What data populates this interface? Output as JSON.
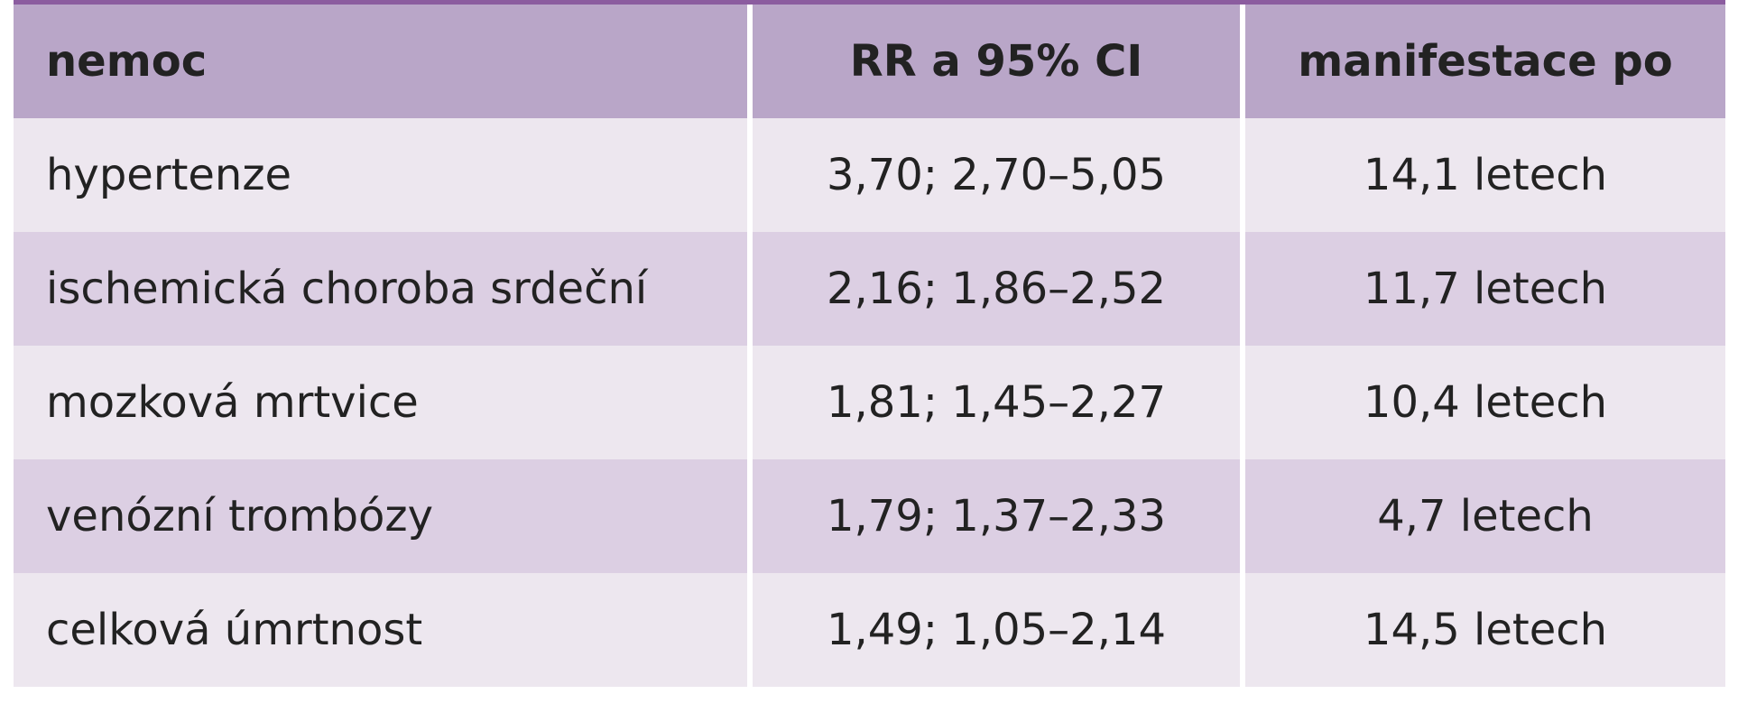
{
  "table": {
    "header": [
      "nemoc",
      "RR a 95% CI",
      "manifestace po"
    ],
    "rows": [
      [
        "hypertenze",
        "3,70; 2,70–5,05",
        "14,1 letech"
      ],
      [
        "ischemická choroba srdeční",
        "2,16; 1,86–2,52",
        "11,7 letech"
      ],
      [
        "mozková mrtvice",
        "1,81; 1,45–2,27",
        "10,4 letech"
      ],
      [
        "venózní trombózy",
        "1,79; 1,37–2,33",
        "4,7 letech"
      ],
      [
        "celková úmrtnost",
        "1,49; 1,05–2,14",
        "14,5 letech"
      ]
    ]
  }
}
